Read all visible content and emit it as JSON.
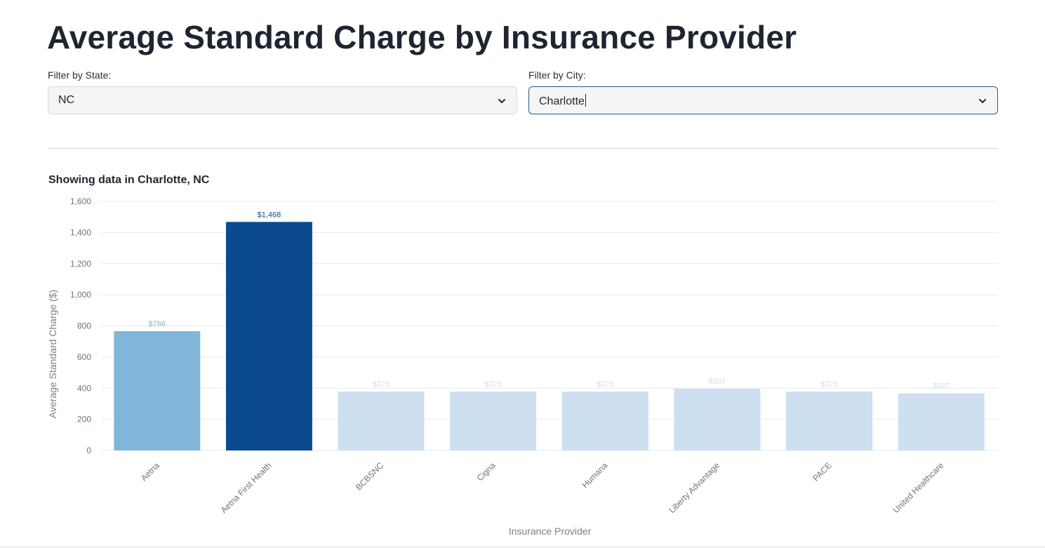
{
  "page": {
    "title": "Average Standard Charge by Insurance Provider"
  },
  "filters": {
    "state": {
      "label": "Filter by State:",
      "value": "NC"
    },
    "city": {
      "label": "Filter by City:",
      "value": "Charlotte"
    }
  },
  "icons": {
    "dropdown": "chevron-down-icon"
  },
  "colors": {
    "highest": "#0b4a8e",
    "second": "#7fb6d9",
    "other": "#cddff0",
    "grid": "#e6e8eb",
    "select_focus": "#1c5d8f"
  },
  "chart_data": {
    "type": "bar",
    "subtitle": "Showing data in Charlotte, NC",
    "categories": [
      "Aetna",
      "Aetna First Health",
      "BCBSNC",
      "Cigna",
      "Humana",
      "Liberty Advantage",
      "PACE",
      "United Healthcare"
    ],
    "values": [
      766,
      1468,
      378,
      378,
      378,
      397,
      378,
      367
    ],
    "data_labels": [
      "$766",
      "$1,468",
      "$378",
      "$378",
      "$378",
      "$397",
      "$378",
      "$367"
    ],
    "xlabel": "Insurance Provider",
    "ylabel": "Average Standard Charge ($)",
    "ylim": [
      0,
      1600
    ],
    "yticks": [
      0,
      200,
      400,
      600,
      800,
      1000,
      1200,
      1400,
      1600
    ],
    "ytick_labels": [
      "0",
      "200",
      "400",
      "600",
      "800",
      "1,000",
      "1,200",
      "1,400",
      "1,600"
    ],
    "grid": true,
    "legend": "none"
  }
}
